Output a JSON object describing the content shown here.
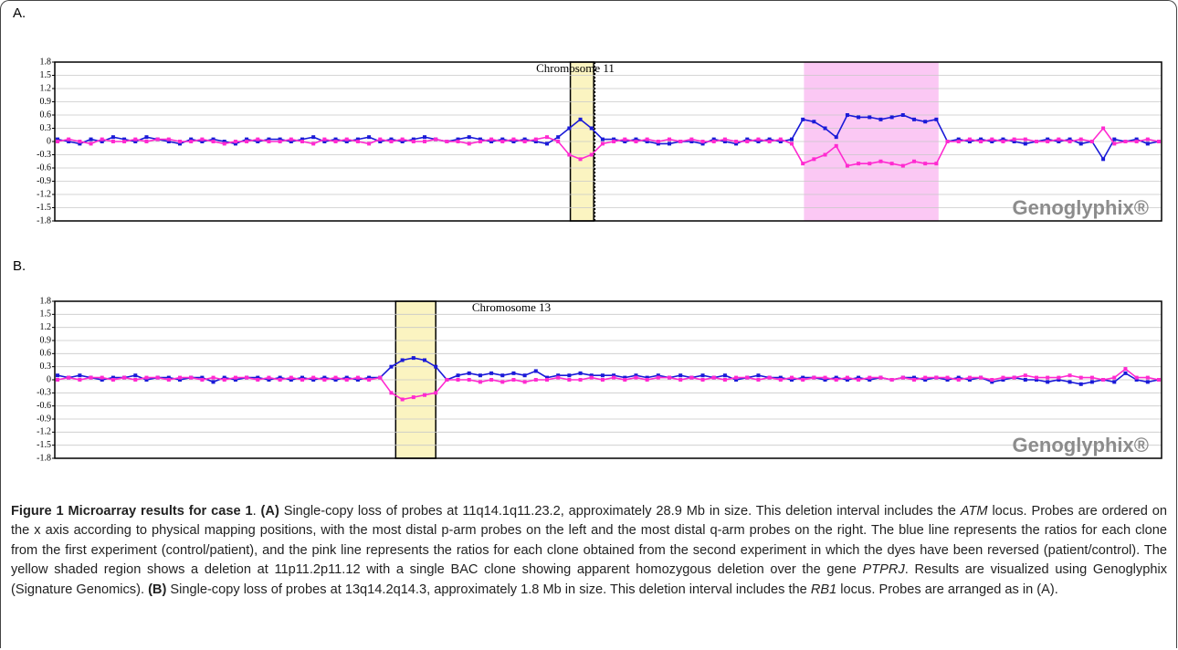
{
  "chart_data": [
    {
      "type": "line",
      "label": "A.",
      "title": "Chromosome 11",
      "watermark": "Genoglyphix®",
      "ylim": [
        -1.8,
        1.8
      ],
      "yticks": [
        1.8,
        1.5,
        1.2,
        0.9,
        0.6,
        0.3,
        0,
        -0.3,
        -0.6,
        -0.9,
        -1.2,
        -1.5,
        -1.8
      ],
      "grid": true,
      "regions": [
        {
          "from": 46.1,
          "to": 48.2,
          "color": "#fbf4c1",
          "border": "#000000"
        },
        {
          "from": 67.1,
          "to": 79.2,
          "color": "#fbc8f4",
          "border": "none"
        }
      ],
      "centromere": 48.3,
      "series": [
        {
          "color": "#1a1ad8",
          "values": [
            0.05,
            0.0,
            -0.05,
            0.05,
            0.0,
            0.1,
            0.05,
            0.0,
            0.1,
            0.05,
            0.0,
            -0.05,
            0.05,
            0.0,
            0.05,
            0.0,
            -0.05,
            0.05,
            0.0,
            0.05,
            0.05,
            0.0,
            0.05,
            0.1,
            0.0,
            0.05,
            0.0,
            0.05,
            0.1,
            0.0,
            0.05,
            0.0,
            0.05,
            0.1,
            0.05,
            0.0,
            0.05,
            0.1,
            0.05,
            0.0,
            0.05,
            0.0,
            0.05,
            0.0,
            -0.05,
            0.1,
            0.3,
            0.5,
            0.3,
            0.05,
            0.05,
            0.0,
            0.05,
            0.0,
            -0.05,
            -0.05,
            0.0,
            0.0,
            -0.05,
            0.05,
            0.0,
            -0.05,
            0.05,
            0.0,
            0.05,
            0.0,
            0.05,
            0.5,
            0.45,
            0.3,
            0.1,
            0.6,
            0.55,
            0.55,
            0.5,
            0.55,
            0.6,
            0.5,
            0.45,
            0.5,
            0.0,
            0.05,
            0.0,
            0.05,
            0.0,
            0.05,
            0.0,
            -0.05,
            0.0,
            0.05,
            0.0,
            0.05,
            -0.05,
            0.0,
            -0.4,
            0.05,
            0.0,
            0.05,
            -0.05,
            0.0
          ]
        },
        {
          "color": "#ff2ad0",
          "values": [
            0.0,
            0.05,
            0.0,
            -0.05,
            0.05,
            0.0,
            0.0,
            0.05,
            0.0,
            0.05,
            0.05,
            0.0,
            0.0,
            0.05,
            0.0,
            -0.05,
            0.0,
            0.0,
            0.05,
            0.0,
            0.0,
            0.05,
            0.0,
            -0.05,
            0.05,
            0.0,
            0.05,
            0.0,
            -0.05,
            0.05,
            0.0,
            0.05,
            0.0,
            0.0,
            0.05,
            0.0,
            0.0,
            -0.05,
            0.0,
            0.05,
            0.0,
            0.05,
            0.0,
            0.05,
            0.1,
            0.0,
            -0.3,
            -0.4,
            -0.3,
            -0.05,
            0.0,
            0.05,
            0.0,
            0.05,
            0.0,
            0.05,
            0.0,
            0.05,
            0.0,
            0.0,
            0.05,
            0.0,
            0.0,
            0.05,
            0.0,
            0.05,
            -0.05,
            -0.5,
            -0.4,
            -0.3,
            -0.1,
            -0.55,
            -0.5,
            -0.5,
            -0.45,
            -0.5,
            -0.55,
            -0.45,
            -0.5,
            -0.5,
            0.0,
            0.0,
            0.05,
            0.0,
            0.05,
            0.0,
            0.05,
            0.05,
            0.0,
            0.0,
            0.05,
            0.0,
            0.05,
            0.0,
            0.3,
            -0.05,
            0.0,
            0.0,
            0.05,
            0.0
          ]
        }
      ]
    },
    {
      "type": "line",
      "label": "B.",
      "title": "Chromosome 13",
      "watermark": "Genoglyphix®",
      "ylim": [
        -1.8,
        1.8
      ],
      "yticks": [
        1.8,
        1.5,
        1.2,
        0.9,
        0.6,
        0.3,
        0,
        -0.3,
        -0.6,
        -0.9,
        -1.2,
        -1.5,
        -1.8
      ],
      "grid": true,
      "regions": [
        {
          "from": 30.4,
          "to": 34.0,
          "color": "#fbf4c1",
          "border": "#000000"
        }
      ],
      "series": [
        {
          "color": "#1a1ad8",
          "values": [
            0.1,
            0.05,
            0.1,
            0.05,
            0.0,
            0.05,
            0.05,
            0.1,
            0.0,
            0.05,
            0.05,
            0.0,
            0.05,
            0.05,
            -0.05,
            0.05,
            0.0,
            0.05,
            0.05,
            0.0,
            0.05,
            0.0,
            0.05,
            0.0,
            0.05,
            0.0,
            0.05,
            0.0,
            0.05,
            0.05,
            0.3,
            0.45,
            0.5,
            0.45,
            0.3,
            0.0,
            0.1,
            0.15,
            0.1,
            0.15,
            0.1,
            0.15,
            0.1,
            0.2,
            0.05,
            0.1,
            0.1,
            0.15,
            0.1,
            0.1,
            0.1,
            0.05,
            0.1,
            0.05,
            0.1,
            0.05,
            0.1,
            0.05,
            0.1,
            0.05,
            0.1,
            0.0,
            0.05,
            0.1,
            0.05,
            0.05,
            0.0,
            0.05,
            0.05,
            0.0,
            0.05,
            0.0,
            0.05,
            0.0,
            0.05,
            0.0,
            0.05,
            0.05,
            0.0,
            0.05,
            0.0,
            0.05,
            0.0,
            0.05,
            -0.05,
            0.0,
            0.05,
            0.0,
            0.0,
            -0.05,
            0.0,
            -0.05,
            -0.1,
            -0.05,
            0.0,
            -0.05,
            0.15,
            0.0,
            -0.05,
            0.0
          ]
        },
        {
          "color": "#ff2ad0",
          "values": [
            0.0,
            0.05,
            0.0,
            0.05,
            0.05,
            0.0,
            0.05,
            0.0,
            0.05,
            0.05,
            0.0,
            0.05,
            0.05,
            0.0,
            0.05,
            0.0,
            0.05,
            0.05,
            0.0,
            0.05,
            0.0,
            0.05,
            0.0,
            0.05,
            0.0,
            0.05,
            0.0,
            0.05,
            0.0,
            0.05,
            -0.3,
            -0.45,
            -0.4,
            -0.35,
            -0.3,
            0.0,
            0.0,
            0.0,
            -0.05,
            0.0,
            -0.05,
            0.0,
            -0.05,
            0.0,
            0.0,
            0.05,
            0.0,
            0.0,
            0.05,
            0.0,
            0.05,
            0.0,
            0.05,
            0.0,
            0.05,
            0.05,
            0.0,
            0.05,
            0.0,
            0.05,
            0.0,
            0.05,
            0.05,
            0.0,
            0.05,
            0.0,
            0.05,
            0.0,
            0.05,
            0.05,
            0.0,
            0.05,
            0.0,
            0.05,
            0.05,
            0.0,
            0.05,
            0.0,
            0.05,
            0.05,
            0.05,
            0.0,
            0.05,
            0.05,
            0.0,
            0.05,
            0.05,
            0.1,
            0.05,
            0.05,
            0.05,
            0.1,
            0.05,
            0.05,
            0.0,
            0.05,
            0.25,
            0.05,
            0.05,
            0.0
          ]
        }
      ]
    }
  ],
  "caption": [
    "Figure 1 Microarray results for case 1",
    ". ",
    "(A)",
    " Single-copy loss of probes at 11q14.1q11.23.2, approximately 28.9 Mb in size. This deletion interval includes the ",
    "ATM",
    " locus. Probes are ordered on the x axis according to physical mapping positions, with the most distal p-arm probes on the left and the most distal q-arm probes on the right. The blue line represents the ratios for each clone from the first experiment (control/patient), and the pink line represents the ratios for each clone obtained from the second experiment in which the dyes have been reversed (patient/control). The yellow shaded region shows a deletion at 11p11.2p11.12 with a single BAC clone showing apparent homozygous deletion over the gene ",
    "PTPRJ",
    ". Results are visualized using Genoglyphix (Signature Genomics). ",
    "(B)",
    " Single-copy loss of probes at 13q14.2q14.3, approximately 1.8 Mb in size. This deletion interval includes the ",
    "RB1",
    " locus. Probes are arranged as in (A)."
  ]
}
